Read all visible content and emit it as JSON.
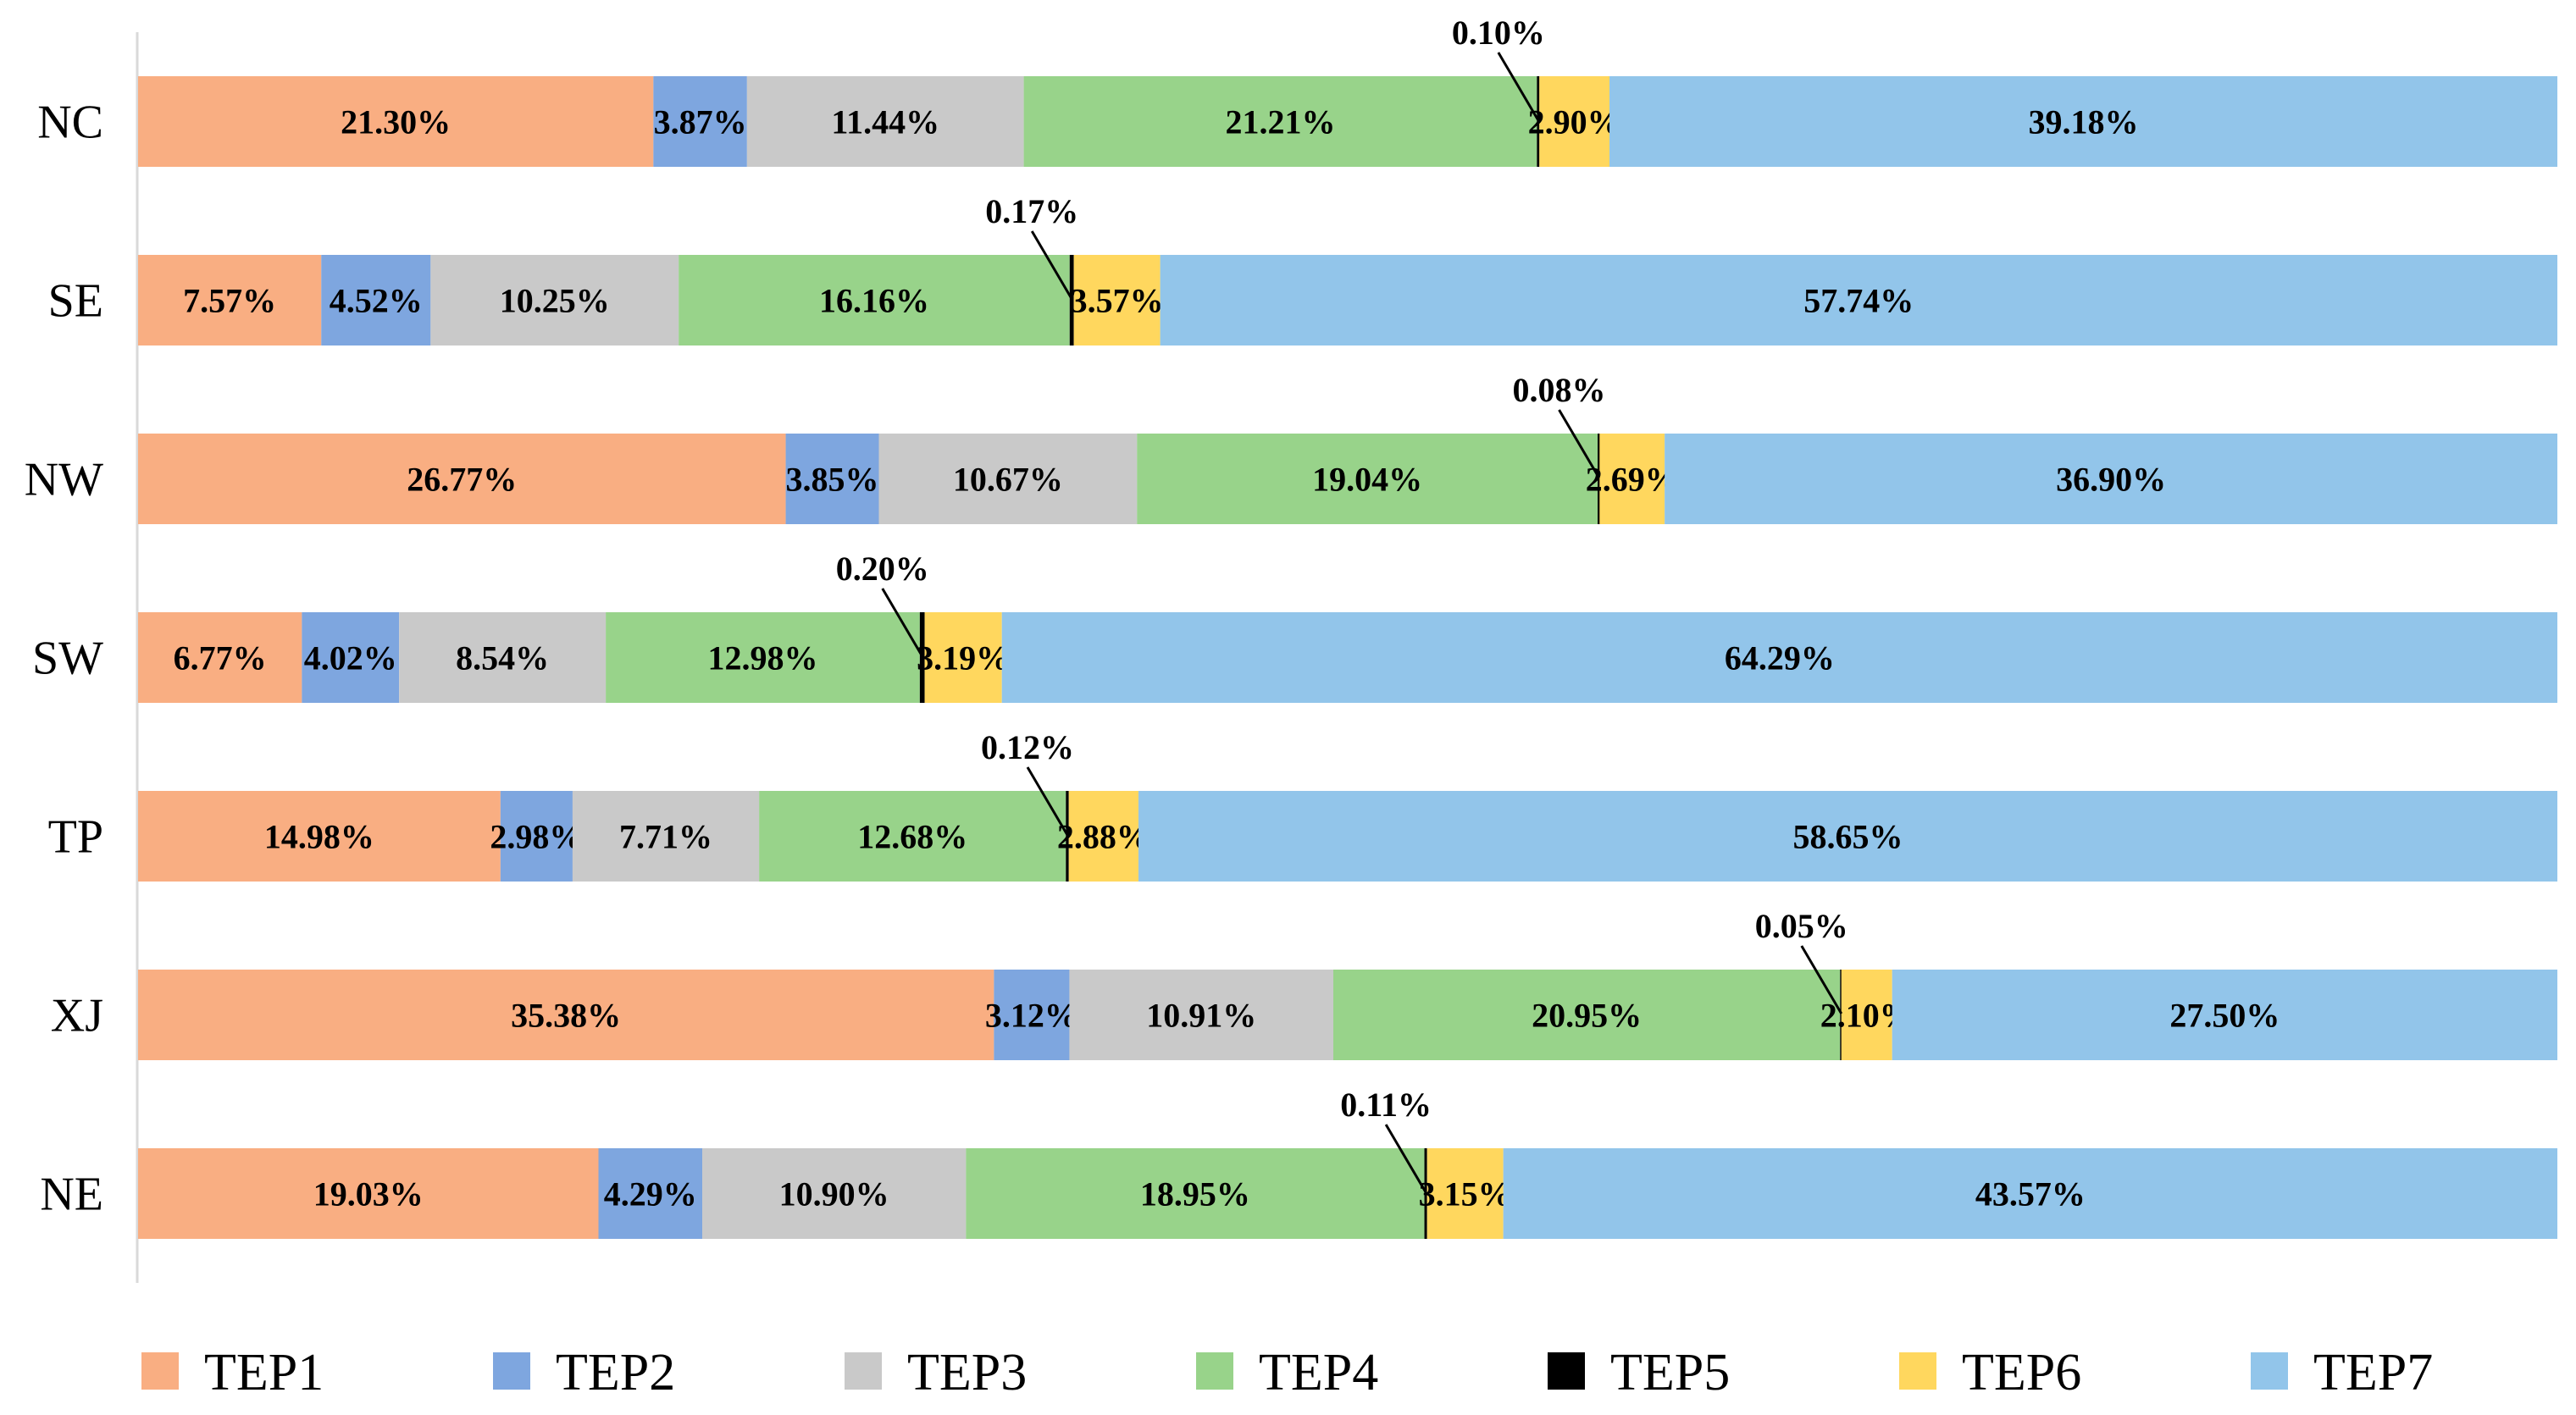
{
  "chart_data": {
    "type": "bar",
    "orientation": "horizontal",
    "stacked": true,
    "normalized": true,
    "title": "",
    "xlabel": "",
    "ylabel": "",
    "xlim": [
      0,
      100
    ],
    "grid": false,
    "legend_position": "bottom",
    "categories": [
      "NC",
      "SE",
      "NW",
      "SW",
      "TP",
      "XJ",
      "NE"
    ],
    "series": [
      {
        "name": "TEP1",
        "color": "#F9AE82",
        "values": [
          21.3,
          7.57,
          26.77,
          6.77,
          14.98,
          35.38,
          19.03
        ],
        "labels": [
          "21.30%",
          "7.57%",
          "26.77%",
          "6.77%",
          "14.98%",
          "35.38%",
          "19.03%"
        ]
      },
      {
        "name": "TEP2",
        "color": "#7EA6DF",
        "values": [
          3.87,
          4.52,
          3.85,
          4.02,
          2.98,
          3.12,
          4.29
        ],
        "labels": [
          "3.87%",
          "4.52%",
          "3.85%",
          "4.02%",
          "2.98%",
          "3.12%",
          "4.29%"
        ]
      },
      {
        "name": "TEP3",
        "color": "#C9C9C9",
        "values": [
          11.44,
          10.25,
          10.67,
          8.54,
          7.71,
          10.91,
          10.9
        ],
        "labels": [
          "11.44%",
          "10.25%",
          "10.67%",
          "8.54%",
          "7.71%",
          "10.91%",
          "10.90%"
        ]
      },
      {
        "name": "TEP4",
        "color": "#98D38A",
        "values": [
          21.21,
          16.16,
          19.04,
          12.98,
          12.68,
          20.95,
          18.95
        ],
        "labels": [
          "21.21%",
          "16.16%",
          "19.04%",
          "12.98%",
          "12.68%",
          "20.95%",
          "18.95%"
        ]
      },
      {
        "name": "TEP5",
        "color": "#000000",
        "values": [
          0.1,
          0.17,
          0.08,
          0.2,
          0.12,
          0.05,
          0.11
        ],
        "labels": [
          "0.10%",
          "0.17%",
          "0.08%",
          "0.20%",
          "0.12%",
          "0.05%",
          "0.11%"
        ]
      },
      {
        "name": "TEP6",
        "color": "#FFD75E",
        "values": [
          2.9,
          3.57,
          2.69,
          3.19,
          2.88,
          2.1,
          3.15
        ],
        "labels": [
          "2.90%",
          "3.57%",
          "2.69%",
          "3.19%",
          "2.88%",
          "2.10%",
          "3.15%"
        ]
      },
      {
        "name": "TEP7",
        "color": "#92C5EA",
        "values": [
          39.18,
          57.74,
          36.9,
          64.29,
          58.65,
          27.5,
          43.57
        ],
        "labels": [
          "39.18%",
          "57.74%",
          "36.90%",
          "64.29%",
          "58.65%",
          "27.50%",
          "43.57%"
        ]
      }
    ]
  }
}
